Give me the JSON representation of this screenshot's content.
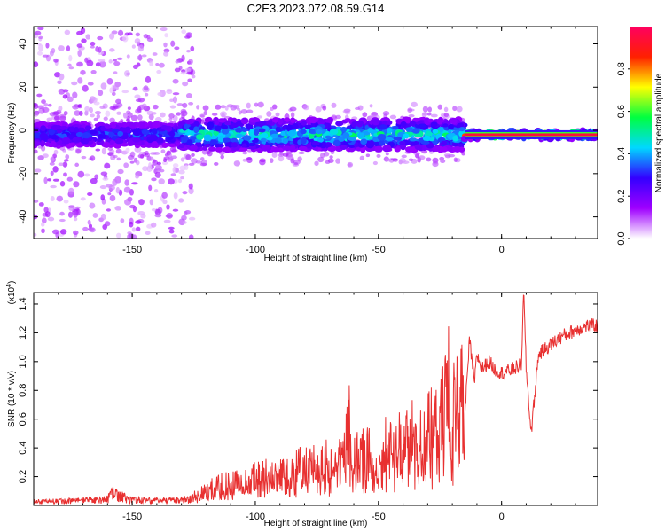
{
  "chart_data": [
    {
      "type": "heatmap",
      "title": "C2E3.2023.072.08.59.G14",
      "xlabel": "Height of straight line (km)",
      "ylabel": "Frequency (Hz)",
      "xlim": [
        -190,
        39
      ],
      "ylim": [
        -50,
        48
      ],
      "xticks": [
        -150,
        -100,
        -50,
        0
      ],
      "yticks": [
        -40,
        -20,
        0,
        20,
        40
      ],
      "colorbar": {
        "label": "Normalized spectral amplitude",
        "range": [
          0,
          1
        ],
        "ticks": [
          0.0,
          0.2,
          0.4,
          0.6,
          0.8
        ],
        "colors": [
          "#ffffff",
          "#9f00ff",
          "#3300ff",
          "#00d8ff",
          "#00ff40",
          "#ffff00",
          "#ff2000",
          "#ff0060"
        ]
      },
      "ridge": {
        "center_hz": -2,
        "segments": [
          {
            "x": [
              -190,
              -130
            ],
            "halfwidth_hz": 5,
            "peak_amplitude": 0.3
          },
          {
            "x": [
              -130,
              -15
            ],
            "halfwidth_hz": 7,
            "peak_amplitude": 0.45
          },
          {
            "x": [
              -15,
              39
            ],
            "halfwidth_hz": 2,
            "peak_amplitude": 0.9
          }
        ]
      },
      "scatter_region": {
        "x": [
          -190,
          -125
        ],
        "y": [
          -50,
          48
        ]
      }
    },
    {
      "type": "line",
      "xlabel": "Height of straight line (km)",
      "ylabel": "SNR (10 * v/v)",
      "yscale_note": "(x10",
      "yscale_exp": "4",
      "yscale_close": ")",
      "xlim": [
        -190,
        39
      ],
      "ylim": [
        0,
        1.48
      ],
      "xticks": [
        -150,
        -100,
        -50,
        0
      ],
      "yticks": [
        0.2,
        0.4,
        0.6,
        0.8,
        1.0,
        1.2,
        1.4
      ],
      "color": "#e83030",
      "series": [
        {
          "x": [
            -190,
            -175,
            -165,
            -160,
            -158,
            -150,
            -140,
            -130,
            -125,
            -120,
            -115,
            -110,
            -105,
            -100,
            -95,
            -90,
            -85,
            -80,
            -75,
            -70,
            -65,
            -62,
            -60,
            -55,
            -50,
            -45,
            -40,
            -35,
            -30,
            -25,
            -22,
            -20,
            -17,
            -15,
            -13,
            -11,
            -10,
            -8,
            -5,
            -3,
            0,
            5,
            8,
            9,
            10,
            12,
            15,
            20,
            25,
            30,
            35,
            39
          ],
          "values": [
            0.03,
            0.04,
            0.05,
            0.06,
            0.12,
            0.05,
            0.04,
            0.05,
            0.07,
            0.1,
            0.15,
            0.15,
            0.17,
            0.2,
            0.22,
            0.24,
            0.25,
            0.27,
            0.28,
            0.3,
            0.33,
            0.56,
            0.34,
            0.35,
            0.37,
            0.42,
            0.45,
            0.48,
            0.52,
            0.55,
            0.9,
            0.6,
            1.0,
            0.6,
            1.15,
            0.85,
            1.05,
            0.95,
            1.0,
            0.95,
            0.92,
            0.95,
            0.98,
            1.48,
            0.95,
            0.5,
            1.05,
            1.12,
            1.18,
            1.22,
            1.25,
            1.25
          ]
        }
      ]
    }
  ]
}
